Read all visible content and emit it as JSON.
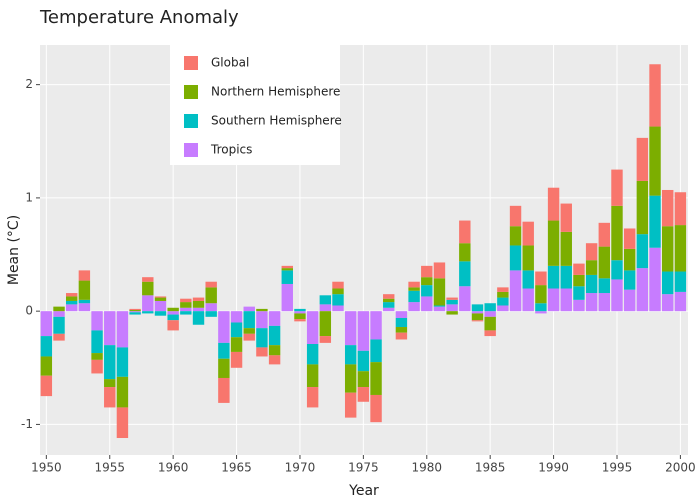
{
  "chart_data": {
    "type": "bar",
    "stacked": true,
    "title": "Temperature Anomaly",
    "x_label": "Year",
    "y_label": "Mean (°C)",
    "x": [
      1950,
      1951,
      1952,
      1953,
      1954,
      1955,
      1956,
      1957,
      1958,
      1959,
      1960,
      1961,
      1962,
      1963,
      1964,
      1965,
      1966,
      1967,
      1968,
      1969,
      1970,
      1971,
      1972,
      1973,
      1974,
      1975,
      1976,
      1977,
      1978,
      1979,
      1980,
      1981,
      1982,
      1983,
      1984,
      1985,
      1986,
      1987,
      1988,
      1989,
      1990,
      1991,
      1992,
      1993,
      1994,
      1995,
      1996,
      1997,
      1998,
      1999,
      2000
    ],
    "series": [
      {
        "name": "Global",
        "color": "#F8766D",
        "values": [
          -0.18,
          -0.06,
          0.03,
          0.09,
          -0.12,
          -0.18,
          -0.27,
          0.01,
          0.04,
          0.01,
          -0.09,
          0.03,
          0.03,
          0.05,
          -0.22,
          -0.14,
          -0.06,
          -0.08,
          -0.08,
          0.02,
          -0.02,
          -0.18,
          -0.06,
          0.06,
          -0.22,
          -0.13,
          -0.24,
          0.04,
          -0.06,
          0.05,
          0.1,
          0.14,
          0.02,
          0.2,
          -0.01,
          -0.05,
          0.04,
          0.18,
          0.21,
          0.12,
          0.29,
          0.25,
          0.1,
          0.15,
          0.21,
          0.32,
          0.18,
          0.38,
          0.55,
          0.32,
          0.29
        ]
      },
      {
        "name": "Northern Hemisphere",
        "color": "#7CAE00",
        "values": [
          -0.17,
          0.04,
          0.04,
          0.17,
          -0.06,
          -0.07,
          -0.27,
          0.01,
          0.12,
          0.03,
          0.03,
          0.05,
          0.06,
          0.14,
          -0.17,
          -0.13,
          -0.05,
          0.02,
          -0.09,
          0.02,
          -0.05,
          -0.2,
          -0.22,
          0.05,
          -0.25,
          -0.14,
          -0.29,
          0.03,
          -0.05,
          0.03,
          0.07,
          0.24,
          -0.03,
          0.16,
          -0.06,
          -0.12,
          0.05,
          0.17,
          0.22,
          0.16,
          0.4,
          0.3,
          0.1,
          0.13,
          0.28,
          0.48,
          0.19,
          0.47,
          0.61,
          0.4,
          0.41
        ]
      },
      {
        "name": "Southern Hemisphere",
        "color": "#00BFC4",
        "values": [
          -0.18,
          -0.15,
          0.03,
          0.03,
          -0.2,
          -0.3,
          -0.26,
          -0.02,
          -0.02,
          -0.04,
          -0.05,
          -0.03,
          -0.12,
          -0.05,
          -0.14,
          -0.13,
          -0.15,
          -0.17,
          -0.17,
          0.12,
          0.02,
          -0.18,
          0.08,
          0.1,
          -0.17,
          -0.18,
          -0.2,
          0.05,
          -0.08,
          0.1,
          0.1,
          0.01,
          0.04,
          0.22,
          0.06,
          0.07,
          0.07,
          0.22,
          0.16,
          0.07,
          0.2,
          0.2,
          0.12,
          0.16,
          0.13,
          0.17,
          0.17,
          0.3,
          0.46,
          0.2,
          0.18
        ]
      },
      {
        "name": "Tropics",
        "color": "#C77CFF",
        "values": [
          -0.22,
          -0.05,
          0.06,
          0.07,
          -0.17,
          -0.3,
          -0.32,
          -0.01,
          0.14,
          0.09,
          -0.03,
          0.03,
          0.03,
          0.07,
          -0.28,
          -0.1,
          0.04,
          -0.15,
          -0.13,
          0.24,
          -0.02,
          -0.29,
          0.06,
          0.05,
          -0.3,
          -0.35,
          -0.25,
          0.03,
          -0.06,
          0.08,
          0.13,
          0.04,
          0.06,
          0.22,
          -0.02,
          -0.05,
          0.05,
          0.36,
          0.2,
          -0.02,
          0.2,
          0.2,
          0.1,
          0.16,
          0.16,
          0.28,
          0.19,
          0.38,
          0.56,
          0.15,
          0.17
        ]
      }
    ],
    "xlim": [
      1949.5,
      2000.6
    ],
    "xticks": [
      1950,
      1955,
      1960,
      1965,
      1970,
      1975,
      1980,
      1985,
      1990,
      1995,
      2000
    ],
    "ylim": [
      -1.27,
      2.35
    ],
    "yticks": [
      -1,
      0,
      1,
      2
    ],
    "grid": true,
    "legend": "top-left"
  }
}
